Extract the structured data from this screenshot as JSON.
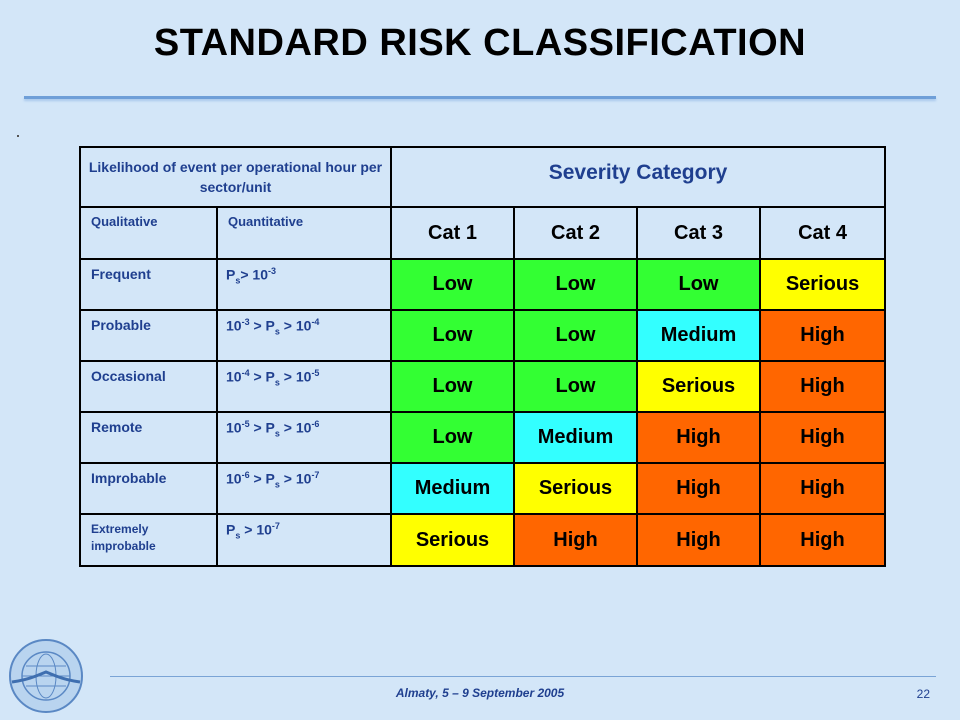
{
  "title": "STANDARD RISK CLASSIFICATION",
  "table": {
    "likelihood_header": "Likelihood of event per operational hour per sector/unit",
    "severity_header": "Severity Category",
    "qualitative_header": "Qualitative",
    "quantitative_header": "Quantitative",
    "categories": [
      "Cat 1",
      "Cat 2",
      "Cat 3",
      "Cat 4"
    ],
    "rows": [
      {
        "qualitative": "Frequent",
        "q": [
          "P",
          "s",
          "> 10",
          "-3",
          "",
          "",
          "",
          ""
        ],
        "cells": [
          "Low",
          "Low",
          "Low",
          "Serious"
        ]
      },
      {
        "qualitative": "Probable",
        "q": [
          "10",
          "-3",
          " > P",
          "s",
          " > 10",
          "-4",
          "",
          ""
        ],
        "cells": [
          "Low",
          "Low",
          "Medium",
          "High"
        ]
      },
      {
        "qualitative": "Occasional",
        "q": [
          "10",
          "-4",
          " > P",
          "s",
          " > 10",
          "-5",
          "",
          ""
        ],
        "cells": [
          "Low",
          "Low",
          "Serious",
          "High"
        ]
      },
      {
        "qualitative": "Remote",
        "q": [
          "10",
          "-5",
          " > P",
          "s",
          " > 10",
          "-6",
          "",
          ""
        ],
        "cells": [
          "Low",
          "Medium",
          "High",
          "High"
        ]
      },
      {
        "qualitative": "Improbable",
        "q": [
          "10",
          "-6",
          " > P",
          "s",
          " > 10",
          "-7",
          "",
          ""
        ],
        "cells": [
          "Medium",
          "Serious",
          "High",
          "High"
        ]
      },
      {
        "qualitative": "Extremely improbable",
        "q": [
          "P",
          "s",
          " > 10",
          "-7",
          "",
          "",
          "",
          ""
        ],
        "cells": [
          "Serious",
          "High",
          "High",
          "High"
        ]
      }
    ]
  },
  "colors": {
    "Low": "#33ff33",
    "Medium": "#33ffff",
    "Serious": "#ffff00",
    "High": "#ff6600"
  },
  "footer": {
    "text": "Almaty, 5 – 9 September 2005",
    "page_number": "22"
  },
  "logo_icon": "icao-emblem-icon"
}
